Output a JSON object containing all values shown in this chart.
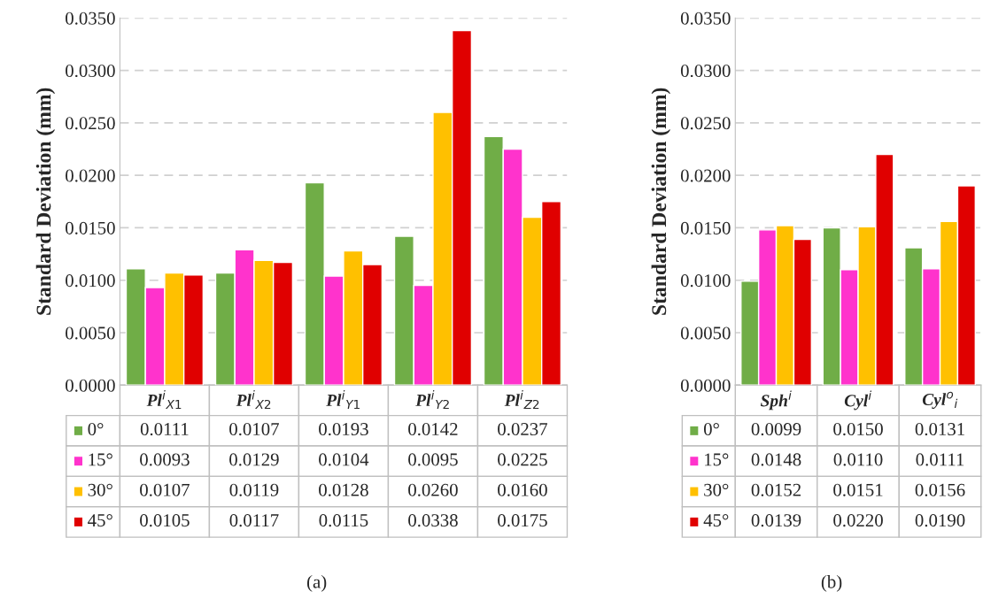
{
  "chart_data": [
    {
      "type": "bar",
      "ylabel": "Standard Deviation (mm)",
      "categories": [
        "Pl$^{i}$$_{X1}$",
        "Pl$^{i}$$_{X2}$",
        "Pl$^{i}$$_{Y1}$",
        "Pl$^{i}$$_{Y2}$",
        "Pl$^{i}$$_{Z2}$"
      ],
      "series": [
        {
          "name": "0°",
          "color": "#70ad47",
          "values": [
            0.0111,
            0.0107,
            0.0193,
            0.0142,
            0.0237
          ],
          "value_labels": [
            "0.0111",
            "0.0107",
            "0.0193",
            "0.0142",
            "0.0237"
          ]
        },
        {
          "name": "15°",
          "color": "#ff33cc",
          "values": [
            0.0093,
            0.0129,
            0.0104,
            0.0095,
            0.0225
          ],
          "value_labels": [
            "0.0093",
            "0.0129",
            "0.0104",
            "0.0095",
            "0.0225"
          ]
        },
        {
          "name": "30°",
          "color": "#ffc000",
          "values": [
            0.0107,
            0.0119,
            0.0128,
            0.026,
            0.016
          ],
          "value_labels": [
            "0.0107",
            "0.0119",
            "0.0128",
            "0.0260",
            "0.0160"
          ]
        },
        {
          "name": "45°",
          "color": "#e00000",
          "values": [
            0.0105,
            0.0117,
            0.0115,
            0.0338,
            0.0175
          ],
          "value_labels": [
            "0.0105",
            "0.0117",
            "0.0115",
            "0.0338",
            "0.0175"
          ]
        }
      ],
      "ylim": [
        0,
        0.035
      ],
      "yticks": [
        {
          "value": 0,
          "label": "0.0000"
        },
        {
          "value": 0.005,
          "label": "0.0050"
        },
        {
          "value": 0.01,
          "label": "0.0100"
        },
        {
          "value": 0.015,
          "label": "0.0150"
        },
        {
          "value": 0.02,
          "label": "0.0200"
        },
        {
          "value": 0.025,
          "label": "0.0250"
        },
        {
          "value": 0.03,
          "label": "0.0300"
        },
        {
          "value": 0.035,
          "label": "0.0350"
        }
      ],
      "grid": "y",
      "legend": "bottom",
      "annotations": [
        "(a)"
      ]
    },
    {
      "type": "bar",
      "ylabel": "Standard Deviation (mm)",
      "categories": [
        "Sph$^{i}$",
        "Cyl$^{i}$",
        "Cyl$^{o}$$_{i}$"
      ],
      "series": [
        {
          "name": "0°",
          "color": "#70ad47",
          "values": [
            0.0099,
            0.015,
            0.0131
          ],
          "value_labels": [
            "0.0099",
            "0.0150",
            "0.0131"
          ]
        },
        {
          "name": "15°",
          "color": "#ff33cc",
          "values": [
            0.0148,
            0.011,
            0.0111
          ],
          "value_labels": [
            "0.0148",
            "0.0110",
            "0.0111"
          ]
        },
        {
          "name": "30°",
          "color": "#ffc000",
          "values": [
            0.0152,
            0.0151,
            0.0156
          ],
          "value_labels": [
            "0.0152",
            "0.0151",
            "0.0156"
          ]
        },
        {
          "name": "45°",
          "color": "#e00000",
          "values": [
            0.0139,
            0.022,
            0.019
          ],
          "value_labels": [
            "0.0139",
            "0.0220",
            "0.0190"
          ]
        }
      ],
      "ylim": [
        0,
        0.035
      ],
      "yticks": [
        {
          "value": 0,
          "label": "0.0000"
        },
        {
          "value": 0.005,
          "label": "0.0050"
        },
        {
          "value": 0.01,
          "label": "0.0100"
        },
        {
          "value": 0.015,
          "label": "0.0150"
        },
        {
          "value": 0.02,
          "label": "0.0200"
        },
        {
          "value": 0.025,
          "label": "0.0250"
        },
        {
          "value": 0.03,
          "label": "0.0300"
        },
        {
          "value": 0.035,
          "label": "0.0350"
        }
      ],
      "grid": "y",
      "legend": "bottom",
      "annotations": [
        "(b)"
      ]
    }
  ]
}
